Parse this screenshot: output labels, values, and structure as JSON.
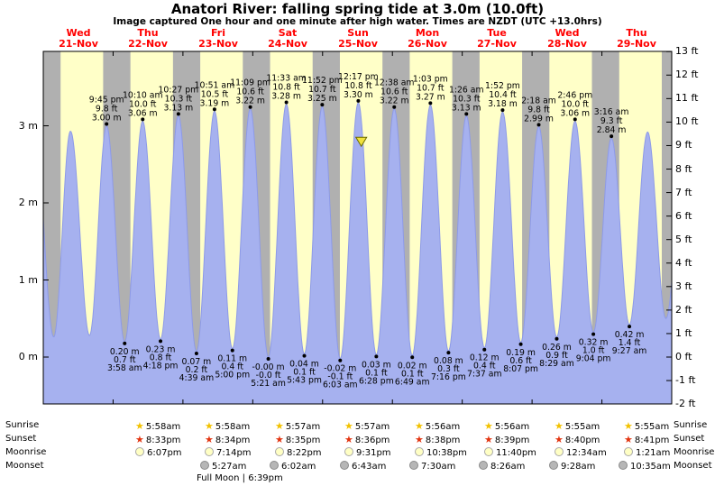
{
  "title": "Anatori River: falling  spring tide at 3.0m (10.0ft)",
  "subtitle": "Image captured One hour and one minute after high water. Times are NZDT (UTC +13.0hrs)",
  "days": [
    {
      "name": "Wed",
      "date": "21-Nov"
    },
    {
      "name": "Thu",
      "date": "22-Nov"
    },
    {
      "name": "Fri",
      "date": "23-Nov"
    },
    {
      "name": "Sat",
      "date": "24-Nov"
    },
    {
      "name": "Sun",
      "date": "25-Nov"
    },
    {
      "name": "Mon",
      "date": "26-Nov"
    },
    {
      "name": "Tue",
      "date": "27-Nov"
    },
    {
      "name": "Wed",
      "date": "28-Nov"
    },
    {
      "name": "Thu",
      "date": "29-Nov"
    }
  ],
  "axis_left_labels": [
    {
      "label": "0 m",
      "m": 0
    },
    {
      "label": "1 m",
      "m": 1
    },
    {
      "label": "2 m",
      "m": 2
    },
    {
      "label": "3 m",
      "m": 3
    }
  ],
  "axis_right_labels": [
    {
      "label": "13 ft",
      "ft": 13
    },
    {
      "label": "12 ft",
      "ft": 12
    },
    {
      "label": "11 ft",
      "ft": 11
    },
    {
      "label": "10 ft",
      "ft": 10
    },
    {
      "label": "9 ft",
      "ft": 9
    },
    {
      "label": "8 ft",
      "ft": 8
    },
    {
      "label": "7 ft",
      "ft": 7
    },
    {
      "label": "6 ft",
      "ft": 6
    },
    {
      "label": "5 ft",
      "ft": 5
    },
    {
      "label": "4 ft",
      "ft": 4
    },
    {
      "label": "3 ft",
      "ft": 3
    },
    {
      "label": "2 ft",
      "ft": 2
    },
    {
      "label": "1 ft",
      "ft": 1
    },
    {
      "label": "0 ft",
      "ft": 0
    },
    {
      "label": "-1 ft",
      "ft": -1
    },
    {
      "label": "-2 ft",
      "ft": -2
    }
  ],
  "chart_data": {
    "type": "area",
    "title": "Anatori River: falling  spring tide at 3.0m (10.0ft)",
    "x_axis": {
      "unit": "days",
      "days": [
        "Wed 21-Nov",
        "Thu 22-Nov",
        "Fri 23-Nov",
        "Sat 24-Nov",
        "Sun 25-Nov",
        "Mon 26-Nov",
        "Tue 27-Nov",
        "Wed 28-Nov",
        "Thu 29-Nov"
      ]
    },
    "y_axis": {
      "left_unit": "m",
      "right_unit": "ft",
      "left_ticks": [
        0,
        1,
        2,
        3
      ],
      "right_ticks": [
        -2,
        -1,
        0,
        1,
        2,
        3,
        4,
        5,
        6,
        7,
        8,
        9,
        10,
        11,
        12,
        13
      ],
      "ylim_m": [
        -0.61,
        3.97
      ]
    },
    "colors": {
      "day": "#ffffc8",
      "night": "#b0b0b0",
      "water": "#a6b1ef",
      "water_edge": "#8d9ae8",
      "frame": "#000000",
      "annotation": "#000000",
      "day_label": "#ff0000",
      "marker_fill": "#f0e13c",
      "marker_edge": "#6b6b00"
    },
    "high_tides": [
      {
        "time": "9:45 pm",
        "ft": "9.8 ft",
        "m": "3.00 m",
        "t_hours": 21.75,
        "height_m": 3.0
      },
      {
        "time": "10:10 am",
        "ft": "10.0 ft",
        "m": "3.06 m",
        "t_hours": 34.17,
        "height_m": 3.06
      },
      {
        "time": "10:27 pm",
        "ft": "10.3 ft",
        "m": "3.13 m",
        "t_hours": 46.45,
        "height_m": 3.13
      },
      {
        "time": "10:51 am",
        "ft": "10.5 ft",
        "m": "3.19 m",
        "t_hours": 58.85,
        "height_m": 3.19
      },
      {
        "time": "11:09 pm",
        "ft": "10.6 ft",
        "m": "3.22 m",
        "t_hours": 71.15,
        "height_m": 3.22
      },
      {
        "time": "11:33 am",
        "ft": "10.8 ft",
        "m": "3.28 m",
        "t_hours": 83.55,
        "height_m": 3.28
      },
      {
        "time": "11:52 pm",
        "ft": "10.7 ft",
        "m": "3.25 m",
        "t_hours": 95.87,
        "height_m": 3.25
      },
      {
        "time": "12:17 pm",
        "ft": "10.8 ft",
        "m": "3.30 m",
        "t_hours": 108.28,
        "height_m": 3.3
      },
      {
        "time": "12:38 am",
        "ft": "10.6 ft",
        "m": "3.22 m",
        "t_hours": 120.63,
        "height_m": 3.22
      },
      {
        "time": "1:03 pm",
        "ft": "10.7 ft",
        "m": "3.27 m",
        "t_hours": 133.05,
        "height_m": 3.27
      },
      {
        "time": "1:26 am",
        "ft": "10.3 ft",
        "m": "3.13 m",
        "t_hours": 145.43,
        "height_m": 3.13
      },
      {
        "time": "1:52 pm",
        "ft": "10.4 ft",
        "m": "3.18 m",
        "t_hours": 157.87,
        "height_m": 3.18
      },
      {
        "time": "2:18 am",
        "ft": "9.8 ft",
        "m": "2.99 m",
        "t_hours": 170.3,
        "height_m": 2.99
      },
      {
        "time": "2:46 pm",
        "ft": "10.0 ft",
        "m": "3.06 m",
        "t_hours": 182.77,
        "height_m": 3.06
      },
      {
        "time": "3:16 am",
        "ft": "9.3 ft",
        "m": "2.84 m",
        "t_hours": 195.27,
        "height_m": 2.84
      }
    ],
    "low_tides": [
      {
        "m": "0.20 m",
        "ft": "0.7 ft",
        "time": "3:58 am",
        "t_hours": 27.97,
        "height_m": 0.2
      },
      {
        "m": "0.23 m",
        "ft": "0.8 ft",
        "time": "4:18 pm",
        "t_hours": 40.3,
        "height_m": 0.23
      },
      {
        "m": "0.07 m",
        "ft": "0.2 ft",
        "time": "4:39 am",
        "t_hours": 52.65,
        "height_m": 0.07
      },
      {
        "m": "0.11 m",
        "ft": "0.4 ft",
        "time": "5:00 pm",
        "t_hours": 65.0,
        "height_m": 0.11
      },
      {
        "m": "-0.00 m",
        "ft": "-0.0 ft",
        "time": "5:21 am",
        "t_hours": 77.35,
        "height_m": 0.0
      },
      {
        "m": "0.04 m",
        "ft": "0.1 ft",
        "time": "5:43 pm",
        "t_hours": 89.72,
        "height_m": 0.04
      },
      {
        "m": "-0.02 m",
        "ft": "-0.1 ft",
        "time": "6:03 am",
        "t_hours": 102.05,
        "height_m": -0.02
      },
      {
        "m": "0.03 m",
        "ft": "0.1 ft",
        "time": "6:28 pm",
        "t_hours": 114.47,
        "height_m": 0.03
      },
      {
        "m": "0.02 m",
        "ft": "0.1 ft",
        "time": "6:49 am",
        "t_hours": 126.82,
        "height_m": 0.02
      },
      {
        "m": "0.08 m",
        "ft": "0.3 ft",
        "time": "7:16 pm",
        "t_hours": 139.27,
        "height_m": 0.08
      },
      {
        "m": "0.12 m",
        "ft": "0.4 ft",
        "time": "7:37 am",
        "t_hours": 151.62,
        "height_m": 0.12
      },
      {
        "m": "0.19 m",
        "ft": "0.6 ft",
        "time": "8:07 pm",
        "t_hours": 164.12,
        "height_m": 0.19
      },
      {
        "m": "0.26 m",
        "ft": "0.9 ft",
        "time": "8:29 am",
        "t_hours": 176.48,
        "height_m": 0.26
      },
      {
        "m": "0.32 m",
        "ft": "1.0 ft",
        "time": "9:04 pm",
        "t_hours": 189.07,
        "height_m": 0.32
      },
      {
        "m": "0.42 m",
        "ft": "1.4 ft",
        "time": "9:27 am",
        "t_hours": 201.45,
        "height_m": 0.42
      }
    ],
    "curve_extremes": [
      [
        -3.0,
        2.95
      ],
      [
        3.6,
        0.26
      ],
      [
        9.35,
        2.93
      ],
      [
        15.9,
        0.28
      ],
      [
        21.75,
        3.0
      ],
      [
        27.97,
        0.2
      ],
      [
        34.17,
        3.06
      ],
      [
        40.3,
        0.23
      ],
      [
        46.45,
        3.13
      ],
      [
        52.65,
        0.07
      ],
      [
        58.85,
        3.19
      ],
      [
        65.0,
        0.11
      ],
      [
        71.15,
        3.22
      ],
      [
        77.35,
        0.0
      ],
      [
        83.55,
        3.28
      ],
      [
        89.72,
        0.04
      ],
      [
        95.87,
        3.25
      ],
      [
        102.05,
        -0.02
      ],
      [
        108.28,
        3.3
      ],
      [
        114.47,
        0.03
      ],
      [
        120.63,
        3.22
      ],
      [
        126.82,
        0.02
      ],
      [
        133.05,
        3.27
      ],
      [
        139.27,
        0.08
      ],
      [
        145.43,
        3.13
      ],
      [
        151.62,
        0.12
      ],
      [
        157.87,
        3.18
      ],
      [
        164.12,
        0.19
      ],
      [
        170.3,
        2.99
      ],
      [
        176.48,
        0.26
      ],
      [
        182.77,
        3.06
      ],
      [
        189.07,
        0.32
      ],
      [
        195.27,
        2.84
      ],
      [
        201.45,
        0.42
      ],
      [
        207.7,
        2.92
      ],
      [
        214.0,
        0.5
      ],
      [
        220.5,
        2.7
      ]
    ],
    "capture_marker": {
      "t_hours": 109.3,
      "height_m": 3.05
    }
  },
  "astro": {
    "icon_colors": {
      "sunrise": "#f2c200",
      "sunset": "#e23410",
      "moonrise_fill": "#ffffc4",
      "moonrise_edge": "#a8a8a8",
      "moonset_fill": "#b6b6b6",
      "moonset_edge": "#8a8a8a"
    },
    "rows": [
      {
        "label": "Sunrise",
        "times": [
          "5:58am",
          "5:58am",
          "5:57am",
          "5:57am",
          "5:56am",
          "5:56am",
          "5:55am",
          "5:55am"
        ]
      },
      {
        "label": "Sunset",
        "times": [
          "8:33pm",
          "8:34pm",
          "8:35pm",
          "8:36pm",
          "8:38pm",
          "8:39pm",
          "8:40pm",
          "8:41pm"
        ]
      },
      {
        "label": "Moonrise",
        "times": [
          "6:07pm",
          "7:14pm",
          "8:22pm",
          "9:31pm",
          "10:38pm",
          "11:40pm",
          "12:34am",
          "1:21am"
        ]
      },
      {
        "label": "Moonset",
        "times": [
          "5:27am",
          "6:02am",
          "6:43am",
          "7:30am",
          "8:26am",
          "9:28am",
          "10:35am"
        ]
      }
    ],
    "full_moon": "Full Moon | 6:39pm"
  }
}
